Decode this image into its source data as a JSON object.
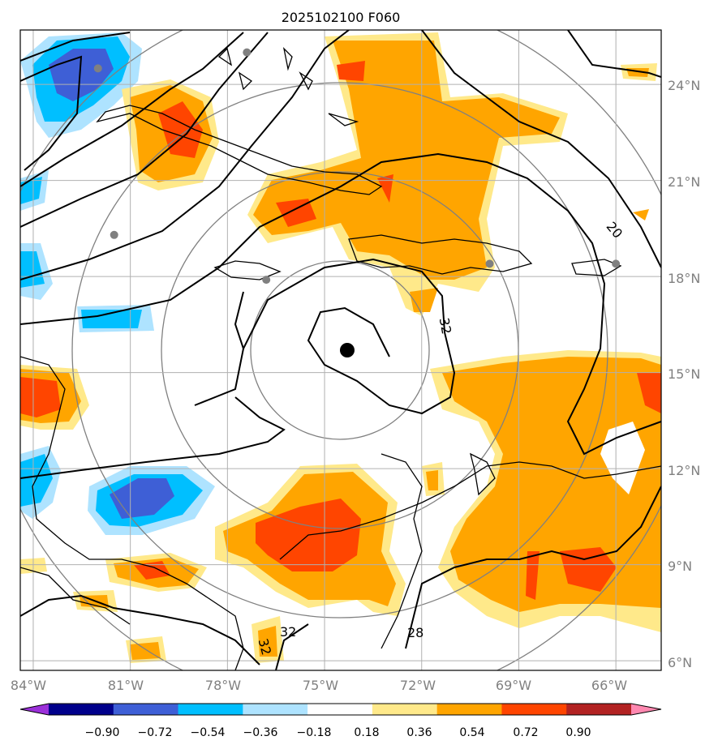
{
  "title": "2025102100 F060",
  "map": {
    "lon_labels": [
      "84°W",
      "81°W",
      "78°W",
      "75°W",
      "72°W",
      "69°W",
      "66°W"
    ],
    "lat_labels": [
      "24°N",
      "21°N",
      "18°N",
      "15°N",
      "12°N",
      "9°N",
      "6°N"
    ],
    "extent": {
      "lon": [
        -84.4,
        -64.6
      ],
      "lat": [
        5.7,
        25.7
      ]
    },
    "storm_center": {
      "lon": -74.3,
      "lat": 15.7
    },
    "range_rings_deg": [
      2.75,
      5.5,
      8.25
    ],
    "contour_labels": [
      "20",
      "32",
      "32",
      "32",
      "28"
    ],
    "grid": true
  },
  "colorbar": {
    "ticks": [
      "−0.90",
      "−0.72",
      "−0.54",
      "−0.36",
      "−0.18",
      "0.18",
      "0.36",
      "0.54",
      "0.72",
      "0.90"
    ],
    "colors": [
      "#9b30d9",
      "#00008b",
      "#3e5fd6",
      "#00bfff",
      "#aee3ff",
      "#ffffff",
      "#ffe98a",
      "#ffa500",
      "#ff4500",
      "#b22222",
      "#ff88b0"
    ]
  },
  "chart_data": {
    "type": "heatmap",
    "title": "2025102100 F060",
    "xlabel": "",
    "ylabel": "",
    "x_ticks": [
      "84°W",
      "81°W",
      "78°W",
      "75°W",
      "72°W",
      "69°W",
      "66°W"
    ],
    "y_ticks": [
      "24°N",
      "21°N",
      "18°N",
      "15°N",
      "12°N",
      "9°N",
      "6°N"
    ],
    "xlim": [
      -84.4,
      -64.6
    ],
    "ylim": [
      5.7,
      25.7
    ],
    "colorbar_levels": [
      -0.9,
      -0.72,
      -0.54,
      -0.36,
      -0.18,
      0.18,
      0.36,
      0.54,
      0.72,
      0.9
    ],
    "contour_labels": [
      20,
      32,
      32,
      32,
      28
    ],
    "storm_center": {
      "lon": -74.3,
      "lat": 15.7
    },
    "stations": [
      {
        "lon": -82.0,
        "lat": 24.5
      },
      {
        "lon": -77.4,
        "lat": 25.0
      },
      {
        "lon": -81.5,
        "lat": 19.3
      },
      {
        "lon": -76.8,
        "lat": 17.9
      },
      {
        "lon": -69.9,
        "lat": 18.4
      },
      {
        "lon": -66.0,
        "lat": 18.4
      }
    ]
  }
}
